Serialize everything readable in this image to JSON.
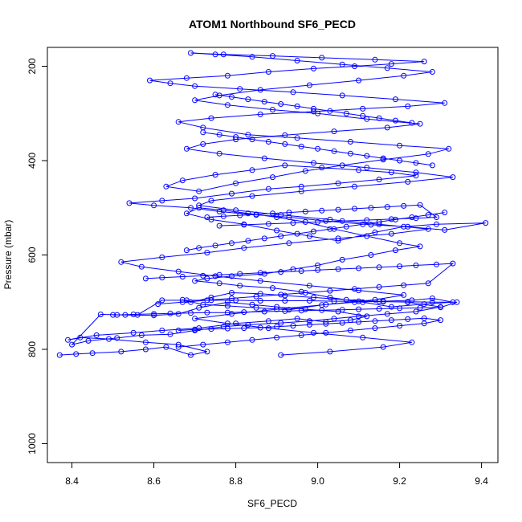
{
  "chart_data": {
    "type": "line",
    "title": "ATOM1 Northbound SF6_PECD",
    "xlabel": "SF6_PECD",
    "ylabel": "Pressure (mbar)",
    "xlim": [
      8.34,
      9.44
    ],
    "ylim": [
      1040,
      160
    ],
    "y_reversed": true,
    "x_ticks": [
      "8.4",
      "8.6",
      "8.8",
      "9.0",
      "9.2",
      "9.4"
    ],
    "y_ticks": [
      "200",
      "400",
      "600",
      "800",
      "1000"
    ],
    "series_color": "#0000ff",
    "marker": "open-circle",
    "grid": false,
    "legend": "none",
    "series": [
      {
        "x": [
          8.37,
          8.41,
          8.45,
          8.52,
          8.58,
          8.63,
          8.69,
          8.73,
          8.66,
          8.58,
          8.49,
          8.42,
          8.39,
          8.46,
          8.55,
          8.62,
          8.71,
          8.8,
          8.88,
          8.95,
          9.02,
          9.08,
          9.12,
          9.05,
          8.97,
          8.9,
          8.84,
          8.78,
          8.71,
          8.66,
          8.6,
          8.53,
          8.47,
          8.4,
          8.44,
          8.51,
          8.57,
          8.64,
          8.7,
          8.77,
          8.83,
          8.91,
          8.98,
          9.04,
          9.1,
          9.17,
          9.24,
          9.3,
          9.22,
          9.15,
          9.07,
          8.99,
          8.92,
          8.86,
          8.79,
          8.74,
          8.69,
          8.67,
          8.72,
          8.78,
          8.85,
          8.93,
          9.01,
          9.09,
          9.16,
          9.23,
          9.28,
          9.33,
          9.26,
          9.18,
          9.11,
          9.03,
          8.96,
          8.89,
          8.81,
          8.76,
          8.7,
          8.73,
          8.79,
          8.87,
          8.94,
          9.0,
          9.06,
          9.13,
          9.19,
          9.25,
          9.2,
          9.12,
          9.04,
          8.97,
          8.9,
          8.83,
          8.77,
          8.71,
          8.68,
          8.74,
          8.82,
          8.9,
          8.98,
          9.05,
          9.14,
          9.21,
          9.29,
          9.41,
          9.31,
          9.22,
          9.13,
          9.02,
          8.93,
          8.85,
          8.76,
          8.69,
          8.6,
          8.54,
          8.62,
          8.7,
          8.79,
          8.88,
          8.96,
          9.05,
          9.15,
          9.24,
          9.18,
          9.1,
          9.01,
          8.92,
          8.84,
          8.75,
          8.67,
          8.63,
          8.71,
          8.8,
          8.89,
          8.97,
          9.06,
          9.16,
          9.27,
          9.32,
          9.2,
          9.08,
          8.95,
          8.83,
          8.72,
          8.66,
          8.74,
          8.86,
          8.99,
          9.11,
          9.22,
          9.31,
          9.19,
          9.06,
          8.94,
          8.81,
          8.7,
          8.64,
          8.59,
          8.68,
          8.78,
          8.88,
          8.99,
          9.09,
          9.18,
          9.26,
          9.14,
          9.01,
          8.89,
          8.77,
          8.69,
          8.75,
          8.84,
          8.95,
          9.06,
          9.17,
          9.28,
          9.21,
          9.1,
          8.98,
          8.86,
          8.76,
          8.7,
          8.78,
          8.89,
          9.0,
          9.12,
          9.25,
          9.17,
          9.04,
          8.92,
          8.8,
          8.72,
          8.68,
          8.76,
          8.87,
          8.99,
          9.12,
          9.24,
          9.33,
          9.22,
          9.09,
          8.96,
          8.84,
          8.74,
          8.71,
          8.8,
          8.91,
          9.03,
          9.15,
          9.27,
          9.18,
          9.05,
          8.93,
          8.82,
          8.73,
          8.62,
          8.52,
          8.57,
          8.66,
          8.75,
          8.86,
          8.98,
          9.1,
          9.21,
          9.14,
          9.02,
          8.9,
          8.79,
          8.7,
          8.78,
          8.88,
          8.99,
          9.11,
          9.23,
          9.16,
          9.03,
          8.91
        ],
        "y": [
          812,
          810,
          808,
          805,
          800,
          795,
          812,
          805,
          790,
          785,
          778,
          775,
          780,
          770,
          765,
          760,
          755,
          745,
          740,
          735,
          742,
          738,
          730,
          720,
          715,
          710,
          705,
          700,
          712,
          725,
          728,
          727,
          726,
          790,
          782,
          776,
          770,
          768,
          760,
          752,
          748,
          744,
          740,
          735,
          730,
          725,
          720,
          710,
          700,
          698,
          695,
          690,
          686,
          682,
          680,
          690,
          700,
          695,
          705,
          708,
          712,
          716,
          706,
          700,
          698,
          696,
          692,
          700,
          704,
          710,
          700,
          690,
          678,
          670,
          665,
          660,
          655,
          650,
          645,
          640,
          630,
          622,
          610,
          600,
          590,
          582,
          575,
          560,
          545,
          530,
          520,
          512,
          505,
          500,
          512,
          525,
          535,
          548,
          560,
          570,
          552,
          540,
          535,
          532,
          547,
          540,
          536,
          528,
          520,
          515,
          508,
          500,
          495,
          490,
          485,
          480,
          470,
          460,
          455,
          448,
          440,
          432,
          425,
          420,
          415,
          410,
          420,
          430,
          442,
          455,
          465,
          448,
          435,
          422,
          410,
          398,
          386,
          375,
          368,
          360,
          352,
          345,
          330,
          318,
          310,
          302,
          296,
          290,
          285,
          278,
          270,
          262,
          255,
          248,
          242,
          236,
          230,
          225,
          220,
          212,
          205,
          200,
          195,
          190,
          186,
          182,
          178,
          175,
          172,
          175,
          180,
          188,
          196,
          204,
          212,
          220,
          230,
          240,
          250,
          262,
          272,
          282,
          292,
          300,
          312,
          322,
          330,
          338,
          346,
          355,
          365,
          375,
          385,
          395,
          405,
          415,
          425,
          435,
          445,
          455,
          465,
          475,
          485,
          495,
          505,
          515,
          525,
          535,
          545,
          555,
          565,
          575,
          585,
          595,
          605,
          615,
          625,
          635,
          645,
          655,
          665,
          675,
          685,
          695,
          705,
          715,
          725,
          735,
          745,
          755,
          765,
          775,
          785,
          795,
          805,
          812
        ]
      },
      {
        "x": [
          8.51,
          8.55,
          8.6,
          8.64,
          8.69,
          8.73,
          8.78,
          8.82,
          8.87,
          8.92,
          8.96,
          9.01,
          9.06,
          9.1,
          9.15,
          9.2,
          9.25,
          9.3,
          9.34,
          9.28,
          9.22,
          9.16,
          9.1,
          9.04,
          8.98,
          8.92,
          8.86,
          8.8,
          8.74,
          8.68,
          8.62,
          8.56,
          8.5
        ],
        "y": [
          727,
          726,
          725,
          724,
          723,
          722,
          722,
          721,
          720,
          719,
          718,
          717,
          716,
          715,
          714,
          713,
          712,
          711,
          700,
          700,
          699,
          699,
          698,
          698,
          697,
          697,
          697,
          696,
          696,
          696,
          696,
          727,
          727
        ]
      },
      {
        "x": [
          8.66,
          8.7,
          8.74,
          8.78,
          8.82,
          8.86,
          8.9,
          8.94,
          8.98,
          9.02,
          9.06,
          9.1,
          9.14,
          9.18,
          9.22,
          9.26,
          9.3,
          9.26,
          9.2,
          9.14,
          9.08,
          9.02,
          8.96,
          8.9,
          8.84,
          8.78,
          8.72,
          8.66
        ],
        "y": [
          760,
          758,
          757,
          756,
          755,
          754,
          752,
          750,
          748,
          746,
          744,
          742,
          740,
          738,
          736,
          734,
          738,
          745,
          750,
          755,
          760,
          765,
          770,
          775,
          780,
          785,
          790,
          795
        ]
      },
      {
        "x": [
          8.73,
          8.77,
          8.81,
          8.85,
          8.89,
          8.93,
          8.97,
          9.01,
          9.05,
          9.09,
          9.13,
          9.17,
          9.21,
          9.25,
          9.29,
          9.24,
          9.18,
          9.12,
          9.06,
          9.0,
          8.94,
          8.88,
          8.82,
          8.76
        ],
        "y": [
          520,
          518,
          516,
          514,
          512,
          510,
          508,
          506,
          504,
          502,
          500,
          498,
          496,
          494,
          520,
          522,
          524,
          526,
          528,
          530,
          532,
          534,
          536,
          538
        ]
      },
      {
        "x": [
          8.58,
          8.62,
          8.67,
          8.72,
          8.76,
          8.81,
          8.86,
          8.91,
          8.96,
          9.0,
          9.05,
          9.1,
          9.15,
          9.2,
          9.24,
          9.29,
          9.33,
          9.27,
          9.21,
          9.15,
          9.09,
          9.03,
          8.97,
          8.91,
          8.85,
          8.79,
          8.73,
          8.67,
          8.61
        ],
        "y": [
          650,
          648,
          646,
          644,
          642,
          640,
          638,
          636,
          634,
          632,
          630,
          628,
          626,
          624,
          622,
          620,
          618,
          660,
          664,
          668,
          672,
          676,
          680,
          684,
          688,
          692,
          696,
          700,
          704
        ]
      },
      {
        "x": [
          8.68,
          8.71,
          8.75,
          8.79,
          8.83,
          8.87,
          8.91,
          8.95,
          8.99,
          9.03,
          9.07,
          9.11,
          9.15,
          9.19,
          9.23,
          9.27,
          9.31
        ],
        "y": [
          590,
          585,
          580,
          575,
          570,
          565,
          560,
          555,
          550,
          545,
          540,
          535,
          530,
          525,
          520,
          515,
          510
        ]
      },
      {
        "x": [
          8.72,
          8.76,
          8.8,
          8.84,
          8.88,
          8.92,
          8.96,
          9.0,
          9.04,
          9.08,
          9.12,
          9.16,
          9.2,
          9.24,
          9.28
        ],
        "y": [
          340,
          345,
          350,
          355,
          360,
          365,
          370,
          375,
          380,
          385,
          390,
          395,
          400,
          405,
          410
        ]
      },
      {
        "x": [
          8.75,
          8.79,
          8.83,
          8.87,
          8.91,
          8.95,
          8.99,
          9.03,
          9.07,
          9.11,
          9.15,
          9.19,
          9.23
        ],
        "y": [
          260,
          265,
          270,
          275,
          280,
          285,
          290,
          295,
          300,
          305,
          310,
          315,
          320
        ]
      }
    ]
  }
}
